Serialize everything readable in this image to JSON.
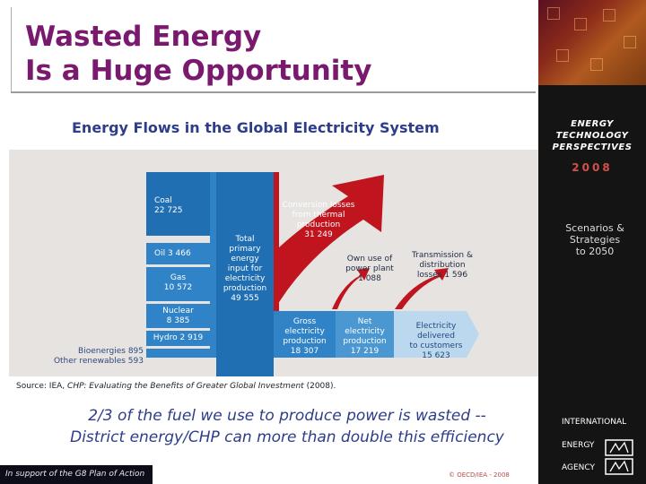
{
  "slide": {
    "title_line1": "Wasted Energy",
    "title_line2": "Is a Huge Opportunity",
    "subtitle": "Energy Flows in the Global Electricity System"
  },
  "diagram": {
    "coal": "Coal\n22 725",
    "oil": "Oil 3 466",
    "gas": "Gas\n10 572",
    "nuclear": "Nuclear\n8 385",
    "hydro": "Hydro 2 919",
    "bio": "Bioenergies 895\nOther renewables 593",
    "total": "Total\nprimary\nenergy\ninput for\nelectricity\nproduction\n49 555",
    "conversion": "Conversion losses\nfrom thermal\nproduction\n31 249",
    "own_use": "Own use of\npower plant\n1 088",
    "transmission": "Transmission &\ndistribution\nlosses 1 596",
    "gross": "Gross\nelectricity\nproduction\n18 307",
    "net": "Net\nelectricity\nproduction\n17 219",
    "delivered": "Electricity\ndelivered\nto customers\n15 623"
  },
  "source": {
    "prefix": "Source:  IEA, ",
    "italic": "CHP:  Evaluating the Benefits of Greater Global Investment",
    "suffix": " (2008)."
  },
  "tagline": "2/3 of the fuel we use to produce power is wasted --\nDistrict energy/CHP can more than double this efficiency",
  "footer": {
    "left": "In support of the G8 Plan of Action",
    "copyright": "© OECD/IEA - 2008"
  },
  "sidebar": {
    "etp": "ENERGY\nTECHNOLOGY\nPERSPECTIVES",
    "year": "2008",
    "scenarios": "Scenarios &\nStrategies\nto 2050",
    "iea_line1": "INTERNATIONAL",
    "iea_line2": "ENERGY",
    "iea_line3": "AGENCY"
  },
  "colors": {
    "title": "#7a1a6e",
    "blue_dark": "#1f6fb2",
    "blue_mid": "#2f83c6",
    "red_arrow": "#c0141e",
    "light_blue": "#bcd8ee"
  }
}
